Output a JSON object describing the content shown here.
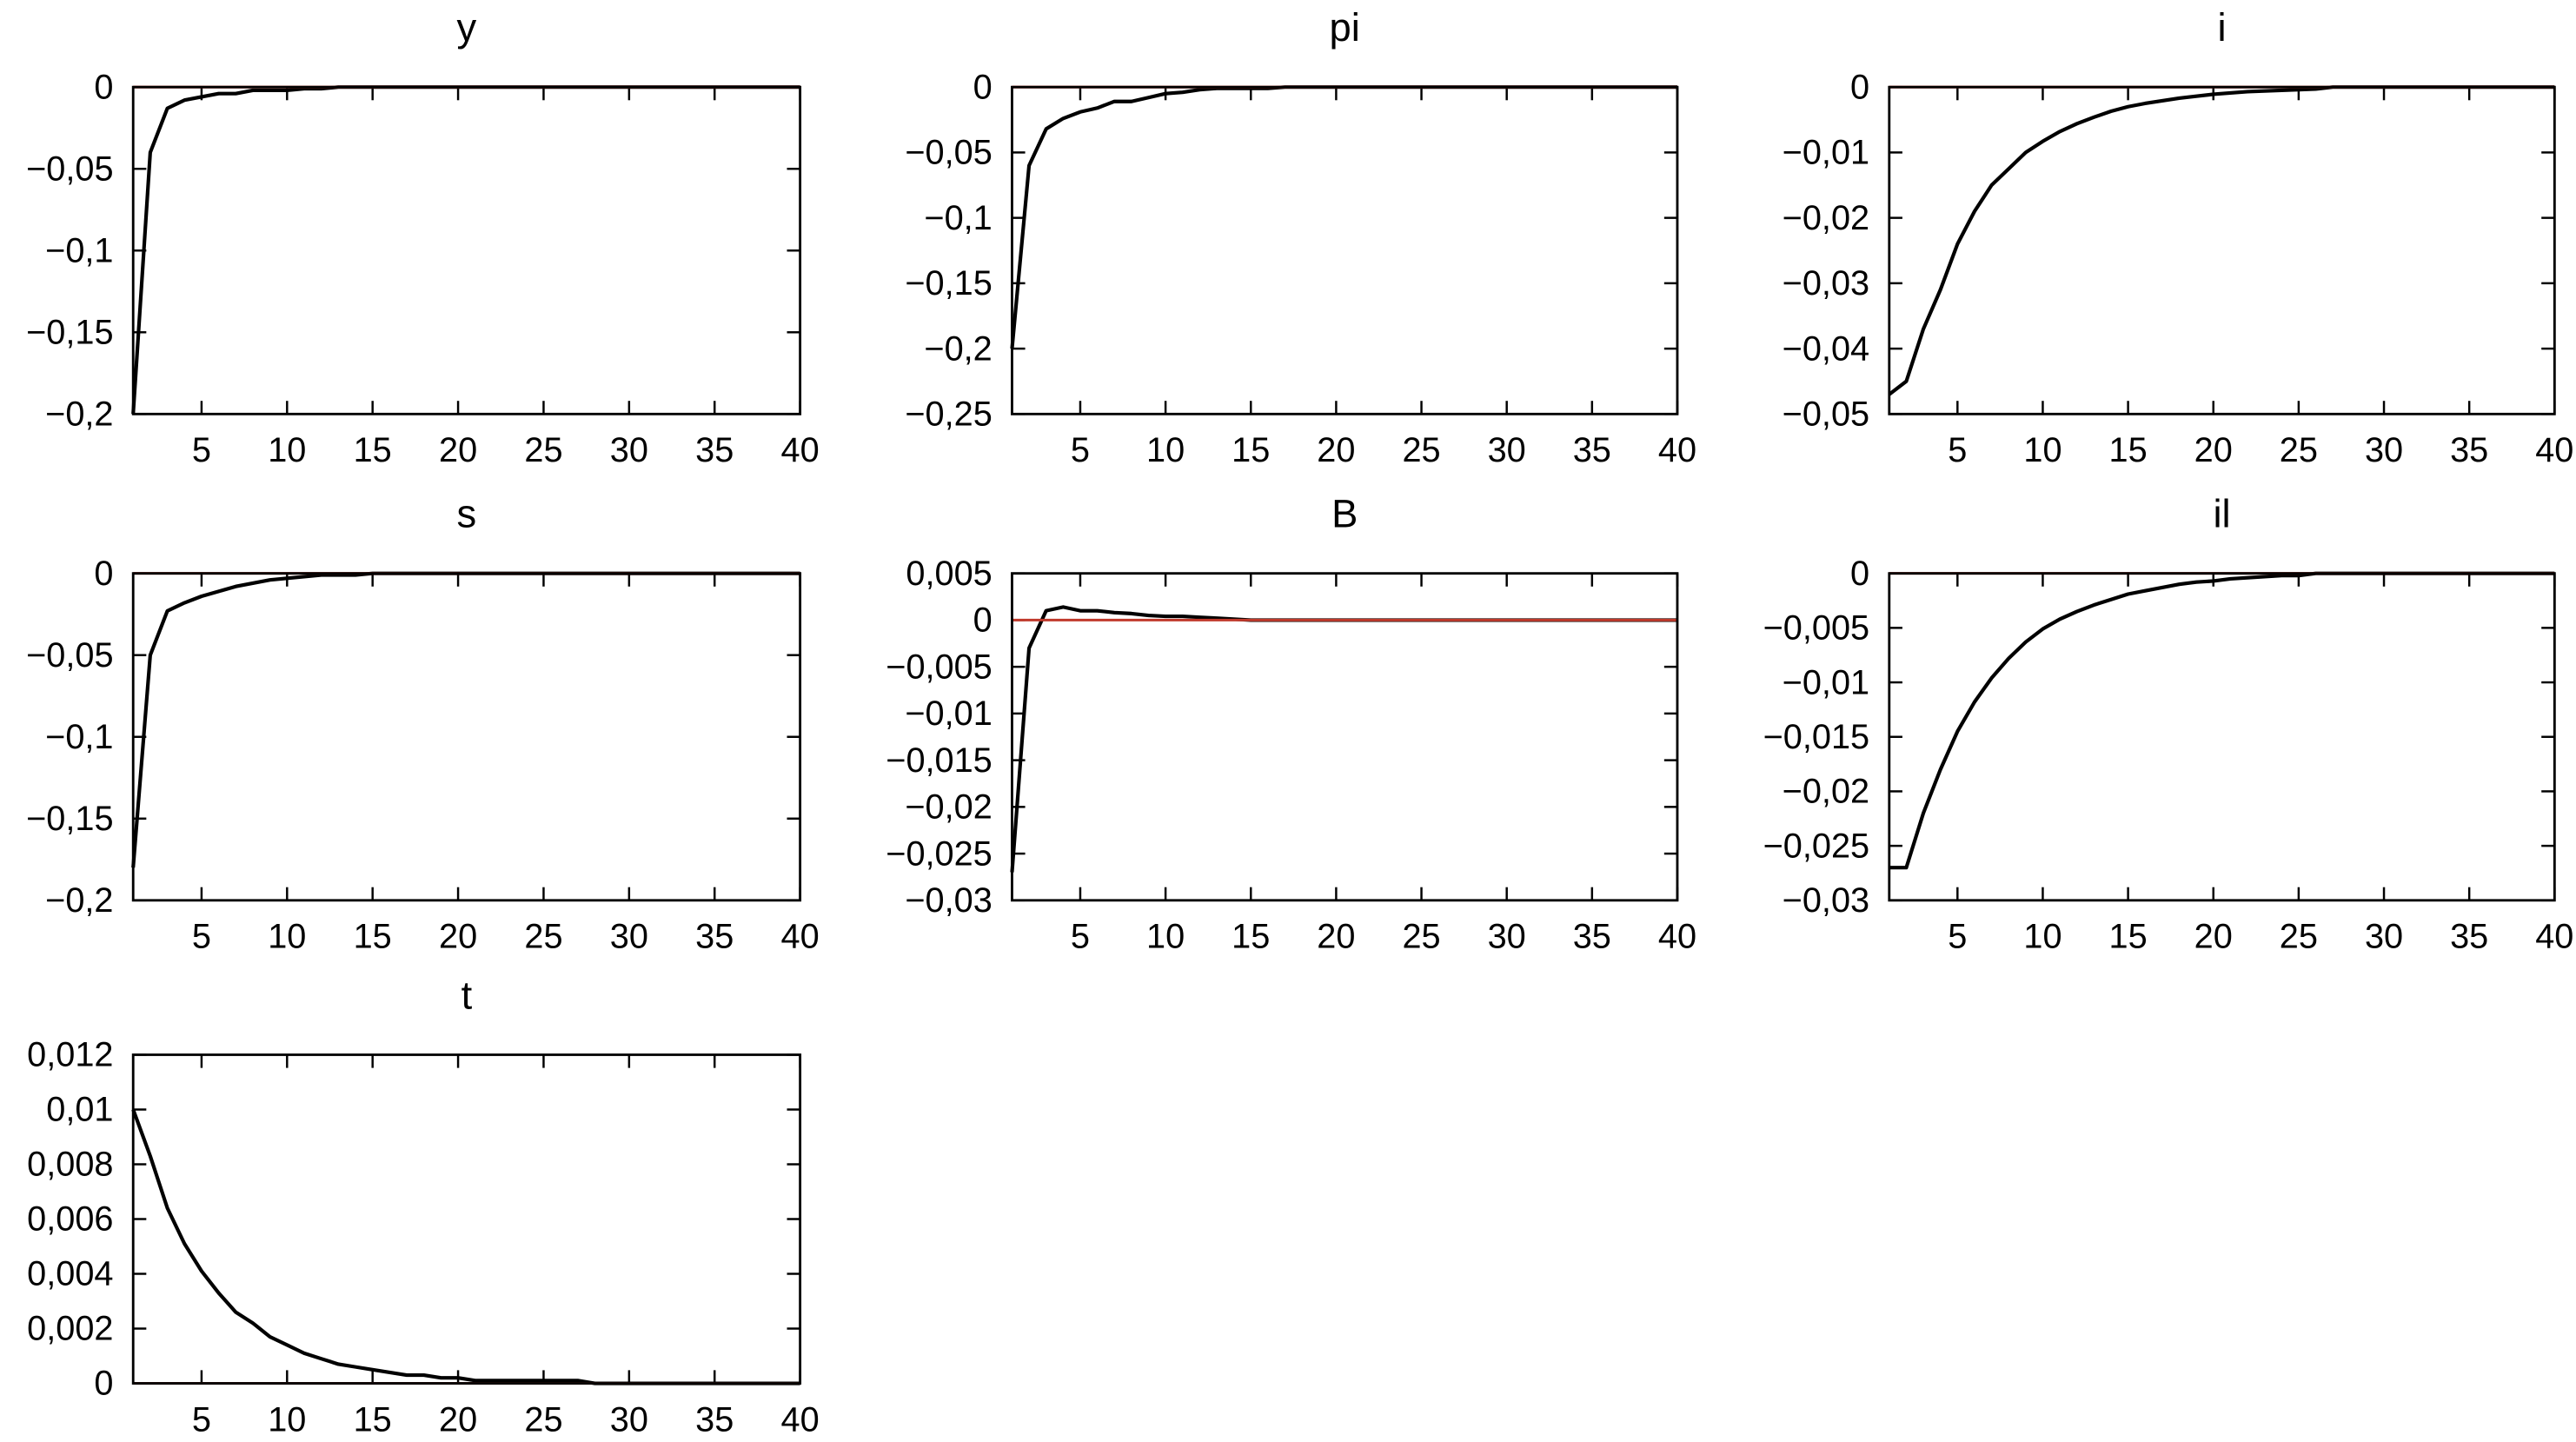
{
  "chart_data": [
    {
      "type": "line",
      "title": "y",
      "x": [
        1,
        2,
        3,
        4,
        5,
        6,
        7,
        8,
        9,
        10,
        11,
        12,
        13,
        14,
        15,
        16,
        17,
        18,
        19,
        20,
        21,
        22,
        23,
        24,
        25,
        26,
        27,
        28,
        29,
        30,
        31,
        32,
        33,
        34,
        35,
        36,
        37,
        38,
        39,
        40
      ],
      "values": [
        -0.2,
        -0.04,
        -0.013,
        -0.008,
        -0.006,
        -0.004,
        -0.004,
        -0.002,
        -0.002,
        -0.002,
        -0.001,
        -0.001,
        0,
        0,
        0,
        0,
        0,
        0,
        0,
        0,
        0,
        0,
        0,
        0,
        0,
        0,
        0,
        0,
        0,
        0,
        0,
        0,
        0,
        0,
        0,
        0,
        0,
        0,
        0,
        0
      ],
      "color": "#000000",
      "xlim": [
        1,
        40
      ],
      "xticks": [
        5,
        10,
        15,
        20,
        25,
        30,
        35,
        40
      ],
      "ylim": [
        -0.2,
        0
      ],
      "yticks": [
        0,
        {
          "value": -0.05,
          "label": "−0,05"
        },
        {
          "value": -0.1,
          "label": "−0,1"
        },
        {
          "value": -0.15,
          "label": "−0,15"
        },
        {
          "value": -0.2,
          "label": "−0,2"
        }
      ],
      "hline": 0,
      "hline_color": "#c0392b"
    },
    {
      "type": "line",
      "title": "pi",
      "x": [
        1,
        2,
        3,
        4,
        5,
        6,
        7,
        8,
        9,
        10,
        11,
        12,
        13,
        14,
        15,
        16,
        17,
        18,
        19,
        20,
        21,
        22,
        23,
        24,
        25,
        26,
        27,
        28,
        29,
        30,
        31,
        32,
        33,
        34,
        35,
        36,
        37,
        38,
        39,
        40
      ],
      "values": [
        -0.2,
        -0.06,
        -0.032,
        -0.024,
        -0.019,
        -0.016,
        -0.011,
        -0.011,
        -0.008,
        -0.005,
        -0.004,
        -0.002,
        -0.001,
        -0.001,
        -0.001,
        -0.001,
        0,
        0,
        0,
        0,
        0,
        0,
        0,
        0,
        0,
        0,
        0,
        0,
        0,
        0,
        0,
        0,
        0,
        0,
        0,
        0,
        0,
        0,
        0,
        0
      ],
      "color": "#000000",
      "xlim": [
        1,
        40
      ],
      "xticks": [
        5,
        10,
        15,
        20,
        25,
        30,
        35,
        40
      ],
      "ylim": [
        -0.25,
        0
      ],
      "yticks": [
        0,
        {
          "value": -0.05,
          "label": "−0,05"
        },
        {
          "value": -0.1,
          "label": "−0,1"
        },
        {
          "value": -0.15,
          "label": "−0,15"
        },
        {
          "value": -0.2,
          "label": "−0,2"
        },
        {
          "value": -0.25,
          "label": "−0,25"
        }
      ],
      "hline": 0,
      "hline_color": "#c0392b"
    },
    {
      "type": "line",
      "title": "i",
      "x": [
        1,
        2,
        3,
        4,
        5,
        6,
        7,
        8,
        9,
        10,
        11,
        12,
        13,
        14,
        15,
        16,
        17,
        18,
        19,
        20,
        21,
        22,
        23,
        24,
        25,
        26,
        27,
        28,
        29,
        30,
        31,
        32,
        33,
        34,
        35,
        36,
        37,
        38,
        39,
        40
      ],
      "values": [
        -0.047,
        -0.045,
        -0.037,
        -0.031,
        -0.024,
        -0.019,
        -0.015,
        -0.0125,
        -0.01,
        -0.0083,
        -0.0068,
        -0.0056,
        -0.0046,
        -0.0037,
        -0.003,
        -0.0025,
        -0.0021,
        -0.0017,
        -0.0014,
        -0.0011,
        -0.0009,
        -0.0007,
        -0.0006,
        -0.0005,
        -0.0004,
        -0.0003,
        0,
        0,
        0,
        0,
        0,
        0,
        0,
        0,
        0,
        0,
        0,
        0,
        0,
        0
      ],
      "color": "#000000",
      "xlim": [
        1,
        40
      ],
      "xticks": [
        5,
        10,
        15,
        20,
        25,
        30,
        35,
        40
      ],
      "ylim": [
        -0.05,
        0
      ],
      "yticks": [
        0,
        {
          "value": -0.01,
          "label": "−0,01"
        },
        {
          "value": -0.02,
          "label": "−0,02"
        },
        {
          "value": -0.03,
          "label": "−0,03"
        },
        {
          "value": -0.04,
          "label": "−0,04"
        },
        {
          "value": -0.05,
          "label": "−0,05"
        }
      ],
      "hline": 0,
      "hline_color": "#c0392b"
    },
    {
      "type": "line",
      "title": "s",
      "x": [
        1,
        2,
        3,
        4,
        5,
        6,
        7,
        8,
        9,
        10,
        11,
        12,
        13,
        14,
        15,
        16,
        17,
        18,
        19,
        20,
        21,
        22,
        23,
        24,
        25,
        26,
        27,
        28,
        29,
        30,
        31,
        32,
        33,
        34,
        35,
        36,
        37,
        38,
        39,
        40
      ],
      "values": [
        -0.18,
        -0.05,
        -0.023,
        -0.018,
        -0.014,
        -0.011,
        -0.008,
        -0.006,
        -0.004,
        -0.003,
        -0.002,
        -0.001,
        -0.001,
        -0.001,
        0,
        0,
        0,
        0,
        0,
        0,
        0,
        0,
        0,
        0,
        0,
        0,
        0,
        0,
        0,
        0,
        0,
        0,
        0,
        0,
        0,
        0,
        0,
        0,
        0,
        0
      ],
      "color": "#000000",
      "xlim": [
        1,
        40
      ],
      "xticks": [
        5,
        10,
        15,
        20,
        25,
        30,
        35,
        40
      ],
      "ylim": [
        -0.2,
        0
      ],
      "yticks": [
        0,
        {
          "value": -0.05,
          "label": "−0,05"
        },
        {
          "value": -0.1,
          "label": "−0,1"
        },
        {
          "value": -0.15,
          "label": "−0,15"
        },
        {
          "value": -0.2,
          "label": "−0,2"
        }
      ],
      "hline": 0,
      "hline_color": "#c0392b"
    },
    {
      "type": "line",
      "title": "B",
      "x": [
        1,
        2,
        3,
        4,
        5,
        6,
        7,
        8,
        9,
        10,
        11,
        12,
        13,
        14,
        15,
        16,
        17,
        18,
        19,
        20,
        21,
        22,
        23,
        24,
        25,
        26,
        27,
        28,
        29,
        30,
        31,
        32,
        33,
        34,
        35,
        36,
        37,
        38,
        39,
        40
      ],
      "values": [
        -0.027,
        -0.003,
        0.001,
        0.0014,
        0.001,
        0.001,
        0.0008,
        0.0007,
        0.0005,
        0.0004,
        0.0004,
        0.0003,
        0.0002,
        0.0001,
        0,
        0,
        0,
        0,
        0,
        0,
        0,
        0,
        0,
        0,
        0,
        0,
        0,
        0,
        0,
        0,
        0,
        0,
        0,
        0,
        0,
        0,
        0,
        0,
        0,
        0
      ],
      "color": "#000000",
      "xlim": [
        1,
        40
      ],
      "xticks": [
        5,
        10,
        15,
        20,
        25,
        30,
        35,
        40
      ],
      "ylim": [
        -0.03,
        0.005
      ],
      "yticks": [
        {
          "value": 0.005,
          "label": "0,005"
        },
        0,
        {
          "value": -0.005,
          "label": "−0,005"
        },
        {
          "value": -0.01,
          "label": "−0,01"
        },
        {
          "value": -0.015,
          "label": "−0,015"
        },
        {
          "value": -0.02,
          "label": "−0,02"
        },
        {
          "value": -0.025,
          "label": "−0,025"
        },
        {
          "value": -0.03,
          "label": "−0,03"
        }
      ],
      "hline": 0,
      "hline_color": "#c0392b"
    },
    {
      "type": "line",
      "title": "il",
      "x": [
        1,
        2,
        3,
        4,
        5,
        6,
        7,
        8,
        9,
        10,
        11,
        12,
        13,
        14,
        15,
        16,
        17,
        18,
        19,
        20,
        21,
        22,
        23,
        24,
        25,
        26,
        27,
        28,
        29,
        30,
        31,
        32,
        33,
        34,
        35,
        36,
        37,
        38,
        39,
        40
      ],
      "values": [
        -0.027,
        -0.027,
        -0.022,
        -0.018,
        -0.0145,
        -0.0118,
        -0.0096,
        -0.0078,
        -0.0063,
        -0.0051,
        -0.0042,
        -0.0035,
        -0.0029,
        -0.0024,
        -0.0019,
        -0.0016,
        -0.0013,
        -0.001,
        -0.0008,
        -0.0007,
        -0.0005,
        -0.0004,
        -0.0003,
        -0.0002,
        -0.0002,
        0,
        0,
        0,
        0,
        0,
        0,
        0,
        0,
        0,
        0,
        0,
        0,
        0,
        0,
        0
      ],
      "color": "#000000",
      "xlim": [
        1,
        40
      ],
      "xticks": [
        5,
        10,
        15,
        20,
        25,
        30,
        35,
        40
      ],
      "ylim": [
        -0.03,
        0
      ],
      "yticks": [
        0,
        {
          "value": -0.005,
          "label": "−0,005"
        },
        {
          "value": -0.01,
          "label": "−0,01"
        },
        {
          "value": -0.015,
          "label": "−0,015"
        },
        {
          "value": -0.02,
          "label": "−0,02"
        },
        {
          "value": -0.025,
          "label": "−0,025"
        },
        {
          "value": -0.03,
          "label": "−0,03"
        }
      ],
      "hline": 0,
      "hline_color": "#c0392b"
    },
    {
      "type": "line",
      "title": "t",
      "x": [
        1,
        2,
        3,
        4,
        5,
        6,
        7,
        8,
        9,
        10,
        11,
        12,
        13,
        14,
        15,
        16,
        17,
        18,
        19,
        20,
        21,
        22,
        23,
        24,
        25,
        26,
        27,
        28,
        29,
        30,
        31,
        32,
        33,
        34,
        35,
        36,
        37,
        38,
        39,
        40
      ],
      "values": [
        0.01,
        0.0083,
        0.0064,
        0.0051,
        0.0041,
        0.0033,
        0.0026,
        0.0022,
        0.0017,
        0.0014,
        0.0011,
        0.0009,
        0.0007,
        0.0006,
        0.0005,
        0.0004,
        0.0003,
        0.0003,
        0.0002,
        0.0002,
        0.0001,
        0.0001,
        0.0001,
        0.0001,
        0.0001,
        0.0001,
        0.0001,
        0,
        0,
        0,
        0,
        0,
        0,
        0,
        0,
        0,
        0,
        0,
        0,
        0
      ],
      "color": "#000000",
      "xlim": [
        1,
        40
      ],
      "xticks": [
        5,
        10,
        15,
        20,
        25,
        30,
        35,
        40
      ],
      "ylim": [
        0,
        0.012
      ],
      "yticks": [
        {
          "value": 0.012,
          "label": "0,012"
        },
        {
          "value": 0.01,
          "label": "0,01"
        },
        {
          "value": 0.008,
          "label": "0,008"
        },
        {
          "value": 0.006,
          "label": "0,006"
        },
        {
          "value": 0.004,
          "label": "0,004"
        },
        {
          "value": 0.002,
          "label": "0,002"
        },
        0
      ],
      "hline": 0,
      "hline_color": "#c0392b"
    }
  ]
}
